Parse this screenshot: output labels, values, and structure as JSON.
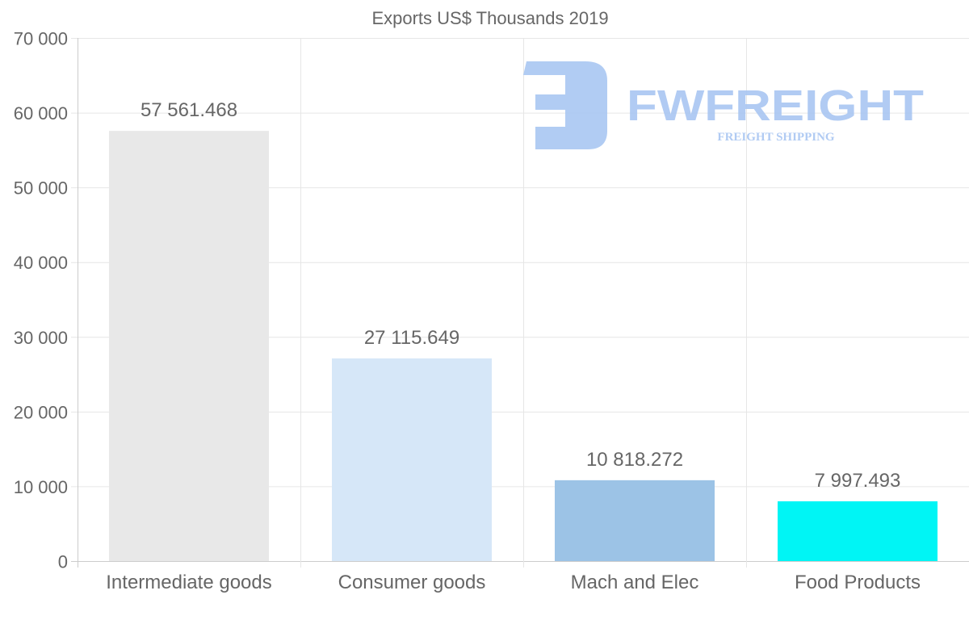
{
  "chart_data": {
    "type": "bar",
    "title": "Exports US$ Thousands 2019",
    "xlabel": "",
    "ylabel": "",
    "categories": [
      "Intermediate goods",
      "Consumer goods",
      "Mach and Elec",
      "Food Products"
    ],
    "values": [
      57561.468,
      27115.649,
      10818.272,
      7997.493
    ],
    "value_labels": [
      "57 561.468",
      "27 115.649",
      "10 818.272",
      "7 997.493"
    ],
    "colors": [
      "#e8e8e8",
      "#d6e7f8",
      "#9cc3e6",
      "#00f5f5"
    ],
    "ylim": [
      0,
      70000
    ],
    "yticks": [
      0,
      10000,
      20000,
      30000,
      40000,
      50000,
      60000,
      70000
    ],
    "ytick_labels": [
      "0",
      "10 000",
      "20 000",
      "30 000",
      "40 000",
      "50 000",
      "60 000",
      "70 000"
    ],
    "grid": true,
    "legend": "none"
  },
  "watermark": {
    "brand": "FWFREIGHT",
    "tagline": "FREIGHT SHIPPING",
    "color": "#a9c6f2"
  }
}
